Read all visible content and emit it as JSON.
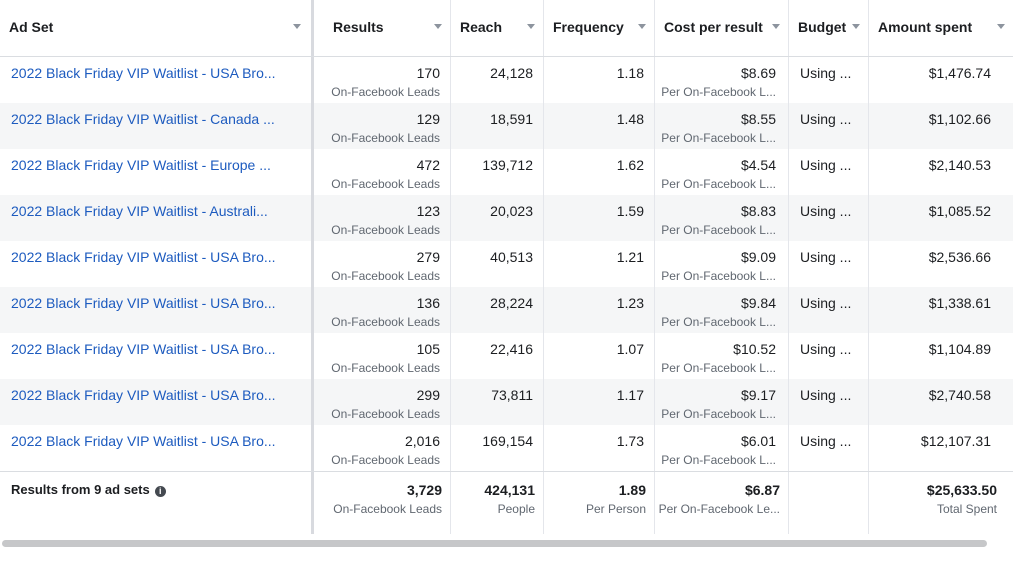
{
  "columns": {
    "ad_set": "Ad Set",
    "results": "Results",
    "reach": "Reach",
    "frequency": "Frequency",
    "cost_per_result": "Cost per result",
    "budget": "Budget",
    "amount_spent": "Amount spent"
  },
  "rows": [
    {
      "name": "2022 Black Friday VIP Waitlist - USA Bro...",
      "results": "170",
      "results_sub": "On-Facebook Leads",
      "reach": "24,128",
      "frequency": "1.18",
      "cost": "$8.69",
      "cost_sub": "Per On-Facebook L...",
      "budget": "Using ...",
      "spent": "$1,476.74"
    },
    {
      "name": "2022 Black Friday VIP Waitlist - Canada ...",
      "results": "129",
      "results_sub": "On-Facebook Leads",
      "reach": "18,591",
      "frequency": "1.48",
      "cost": "$8.55",
      "cost_sub": "Per On-Facebook L...",
      "budget": "Using ...",
      "spent": "$1,102.66"
    },
    {
      "name": "2022 Black Friday VIP Waitlist - Europe ...",
      "results": "472",
      "results_sub": "On-Facebook Leads",
      "reach": "139,712",
      "frequency": "1.62",
      "cost": "$4.54",
      "cost_sub": "Per On-Facebook L...",
      "budget": "Using ...",
      "spent": "$2,140.53"
    },
    {
      "name": "2022 Black Friday VIP Waitlist - Australi...",
      "results": "123",
      "results_sub": "On-Facebook Leads",
      "reach": "20,023",
      "frequency": "1.59",
      "cost": "$8.83",
      "cost_sub": "Per On-Facebook L...",
      "budget": "Using ...",
      "spent": "$1,085.52"
    },
    {
      "name": "2022 Black Friday VIP Waitlist - USA Bro...",
      "results": "279",
      "results_sub": "On-Facebook Leads",
      "reach": "40,513",
      "frequency": "1.21",
      "cost": "$9.09",
      "cost_sub": "Per On-Facebook L...",
      "budget": "Using ...",
      "spent": "$2,536.66"
    },
    {
      "name": "2022 Black Friday VIP Waitlist - USA Bro...",
      "results": "136",
      "results_sub": "On-Facebook Leads",
      "reach": "28,224",
      "frequency": "1.23",
      "cost": "$9.84",
      "cost_sub": "Per On-Facebook L...",
      "budget": "Using ...",
      "spent": "$1,338.61"
    },
    {
      "name": "2022 Black Friday VIP Waitlist - USA Bro...",
      "results": "105",
      "results_sub": "On-Facebook Leads",
      "reach": "22,416",
      "frequency": "1.07",
      "cost": "$10.52",
      "cost_sub": "Per On-Facebook L...",
      "budget": "Using ...",
      "spent": "$1,104.89"
    },
    {
      "name": "2022 Black Friday VIP Waitlist - USA Bro...",
      "results": "299",
      "results_sub": "On-Facebook Leads",
      "reach": "73,811",
      "frequency": "1.17",
      "cost": "$9.17",
      "cost_sub": "Per On-Facebook L...",
      "budget": "Using ...",
      "spent": "$2,740.58"
    },
    {
      "name": "2022 Black Friday VIP Waitlist - USA Bro...",
      "results": "2,016",
      "results_sub": "On-Facebook Leads",
      "reach": "169,154",
      "frequency": "1.73",
      "cost": "$6.01",
      "cost_sub": "Per On-Facebook L...",
      "budget": "Using ...",
      "spent": "$12,107.31"
    }
  ],
  "footer": {
    "title": "Results from 9 ad sets",
    "info_icon": "info-icon",
    "results": "3,729",
    "results_sub": "On-Facebook Leads",
    "reach": "424,131",
    "reach_sub": "People",
    "frequency": "1.89",
    "frequency_sub": "Per Person",
    "cost": "$6.87",
    "cost_sub": "Per On-Facebook Le...",
    "spent": "$25,633.50",
    "spent_sub": "Total Spent"
  },
  "colors": {
    "link": "#1d5bbf",
    "row_alt": "#f5f6f7",
    "border": "#dadde1",
    "secondary_text": "#606770"
  }
}
